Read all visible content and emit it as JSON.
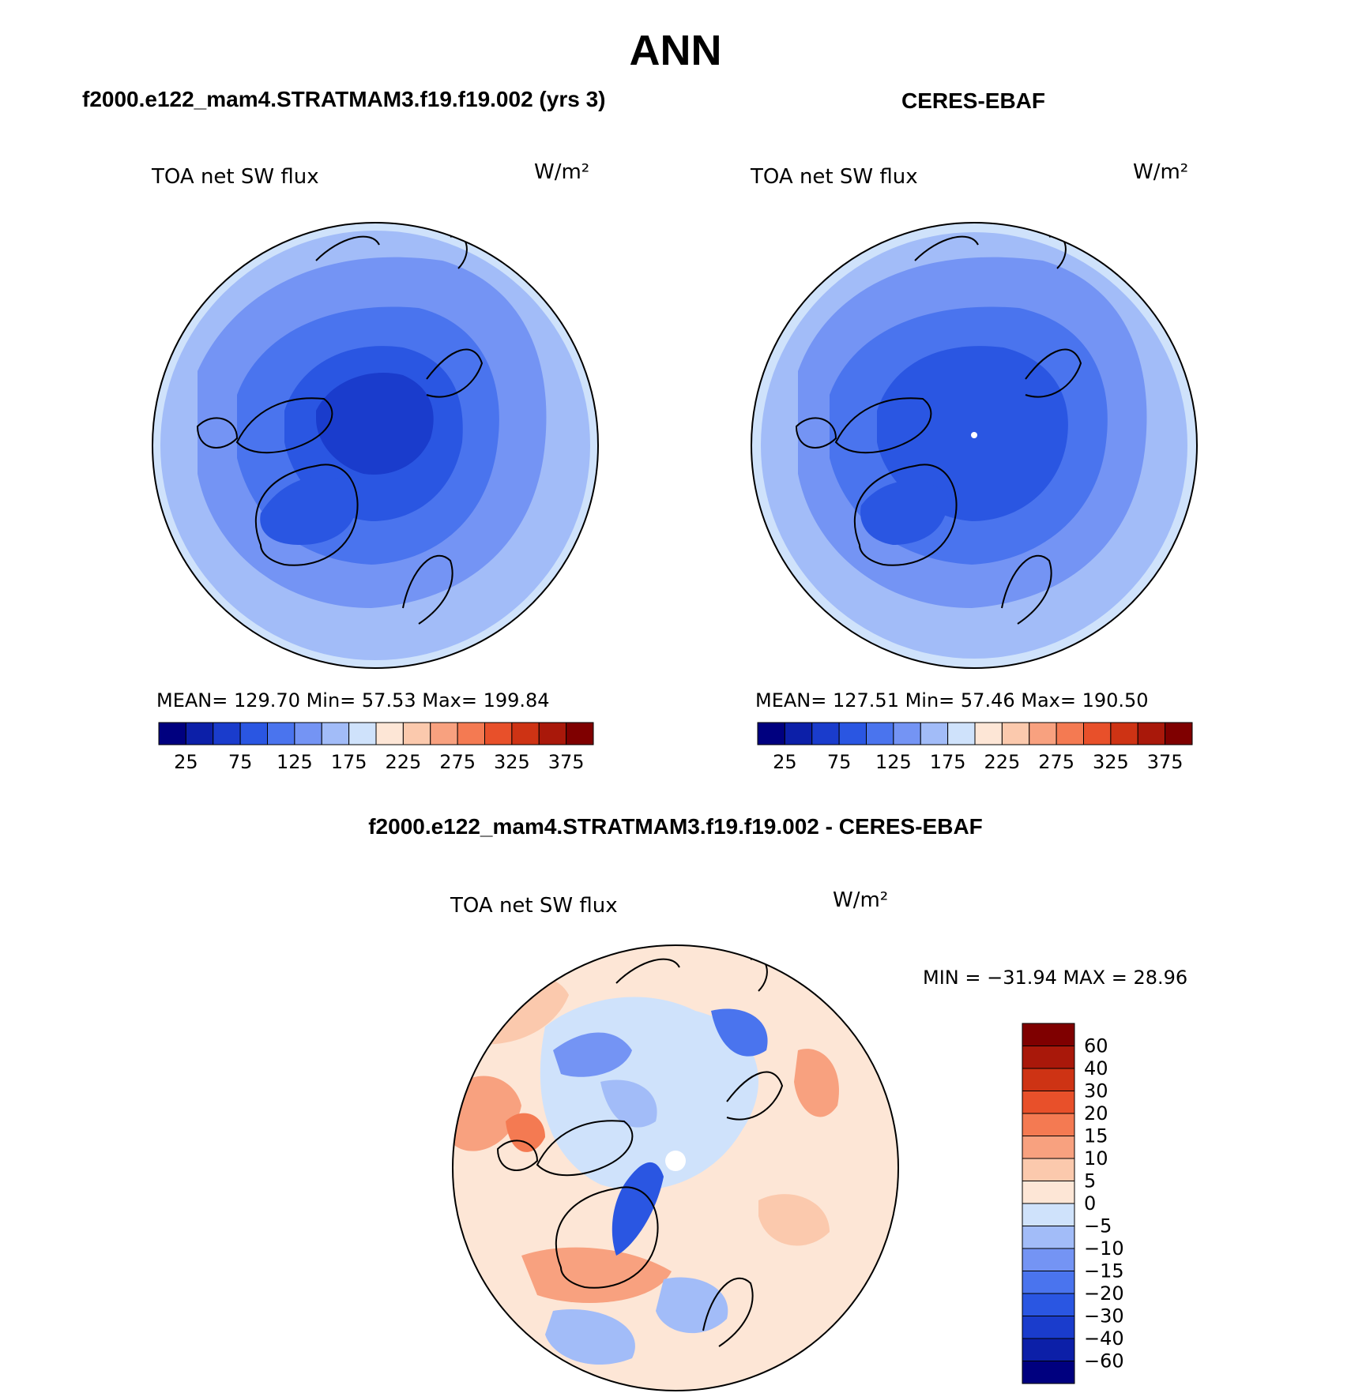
{
  "figure": {
    "title": "ANN",
    "left_title": "f2000.e122_mam4.STRATMAM3.f19.f19.002 (yrs 3)",
    "right_title": "CERES-EBAF",
    "diff_title": "f2000.e122_mam4.STRATMAM3.f19.f19.002 - CERES-EBAF"
  },
  "panels": {
    "model": {
      "variable": "TOA net SW flux",
      "units": "W/m²",
      "stats": "MEAN= 129.70   Min=   57.53   Max= 199.84"
    },
    "obs": {
      "variable": "TOA net SW flux",
      "units": "W/m²",
      "stats": "MEAN= 127.51   Min=   57.46   Max= 190.50"
    },
    "diff": {
      "variable": "TOA net SW flux",
      "units": "W/m²",
      "stats": "MIN = −31.94 MAX =   28.96"
    }
  },
  "colorbars": {
    "abs_colors": [
      "#00007f",
      "#0c1fa8",
      "#1a3ccc",
      "#2a56e2",
      "#4a74ee",
      "#7494f4",
      "#a2bcf8",
      "#cfe2fb",
      "#fde6d6",
      "#fbc9ad",
      "#f8a17f",
      "#f47a52",
      "#e8502a",
      "#ce3314",
      "#a9180a",
      "#7f0000"
    ],
    "abs_ticks": [
      "25",
      "75",
      "125",
      "175",
      "225",
      "275",
      "325",
      "375"
    ],
    "diff_colors": [
      "#00007f",
      "#0c1fa8",
      "#1a3ccc",
      "#2a56e2",
      "#4a74ee",
      "#7494f4",
      "#a2bcf8",
      "#cfe2fb",
      "#fde6d6",
      "#fbc9ad",
      "#f8a17f",
      "#f47a52",
      "#e8502a",
      "#ce3314",
      "#a9180a",
      "#7f0000"
    ],
    "diff_ticks": [
      "60",
      "40",
      "30",
      "20",
      "15",
      "10",
      "5",
      "0",
      "−5",
      "−10",
      "−15",
      "−20",
      "−30",
      "−40",
      "−60"
    ]
  }
}
